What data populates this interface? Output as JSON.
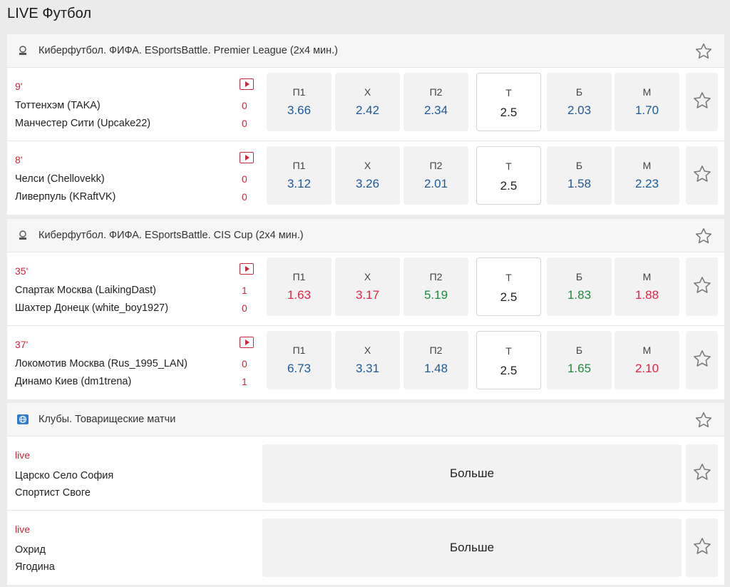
{
  "page": {
    "title": "LIVE Футбол"
  },
  "colors": {
    "accent_red": "#c8283c",
    "odd_blue": "#1e5a96",
    "odd_red": "#dc2846",
    "odd_green": "#1e8c3c"
  },
  "icons": {
    "section_fifa": "fifa-logo-icon",
    "section_clubs": "globe-icon",
    "favorite": "star-icon",
    "video": "video-play-icon"
  },
  "sections": [
    {
      "title": "Киберфутбол. ФИФА. ESportsBattle. Premier League (2x4 мин.)",
      "matches": [
        {
          "minute": "9'",
          "team1": "Тоттенхэм (TAKA)",
          "team2": "Манчестер Сити (Upcake22)",
          "score1": "0",
          "score2": "0",
          "odds": [
            {
              "label": "П1",
              "value": "3.66",
              "color": "blue"
            },
            {
              "label": "Х",
              "value": "2.42",
              "color": "blue"
            },
            {
              "label": "П2",
              "value": "2.34",
              "color": "blue"
            },
            {
              "label": "Т",
              "value": "2.5",
              "color": "plain"
            },
            {
              "label": "Б",
              "value": "2.03",
              "color": "blue"
            },
            {
              "label": "М",
              "value": "1.70",
              "color": "blue"
            }
          ]
        },
        {
          "minute": "8'",
          "team1": "Челси (Chellovekk)",
          "team2": "Ливерпуль (KRaftVK)",
          "score1": "0",
          "score2": "0",
          "odds": [
            {
              "label": "П1",
              "value": "3.12",
              "color": "blue"
            },
            {
              "label": "Х",
              "value": "3.26",
              "color": "blue"
            },
            {
              "label": "П2",
              "value": "2.01",
              "color": "blue"
            },
            {
              "label": "Т",
              "value": "2.5",
              "color": "plain"
            },
            {
              "label": "Б",
              "value": "1.58",
              "color": "blue"
            },
            {
              "label": "М",
              "value": "2.23",
              "color": "blue"
            }
          ]
        }
      ]
    },
    {
      "title": "Киберфутбол. ФИФА. ESportsBattle. CIS Cup (2x4 мин.)",
      "matches": [
        {
          "minute": "35'",
          "team1": "Спартак Москва (LaikingDast)",
          "team2": "Шахтер Донецк (white_boy1927)",
          "score1": "1",
          "score2": "0",
          "odds": [
            {
              "label": "П1",
              "value": "1.63",
              "color": "red"
            },
            {
              "label": "Х",
              "value": "3.17",
              "color": "red"
            },
            {
              "label": "П2",
              "value": "5.19",
              "color": "green"
            },
            {
              "label": "Т",
              "value": "2.5",
              "color": "plain"
            },
            {
              "label": "Б",
              "value": "1.83",
              "color": "green"
            },
            {
              "label": "М",
              "value": "1.88",
              "color": "red"
            }
          ]
        },
        {
          "minute": "37'",
          "team1": "Локомотив Москва (Rus_1995_LAN)",
          "team2": "Динамо Киев (dm1trena)",
          "score1": "0",
          "score2": "1",
          "odds": [
            {
              "label": "П1",
              "value": "6.73",
              "color": "blue"
            },
            {
              "label": "Х",
              "value": "3.31",
              "color": "blue"
            },
            {
              "label": "П2",
              "value": "1.48",
              "color": "blue"
            },
            {
              "label": "Т",
              "value": "2.5",
              "color": "plain"
            },
            {
              "label": "Б",
              "value": "1.65",
              "color": "green"
            },
            {
              "label": "М",
              "value": "2.10",
              "color": "red"
            }
          ]
        }
      ]
    },
    {
      "title": "Клубы. Товарищеские матчи",
      "matches": [
        {
          "status": "live",
          "team1": "Царско Село София",
          "team2": "Спортист Своге",
          "more_label": "Больше"
        },
        {
          "status": "live",
          "team1": "Охрид",
          "team2": "Ягодина",
          "more_label": "Больше"
        }
      ]
    }
  ]
}
